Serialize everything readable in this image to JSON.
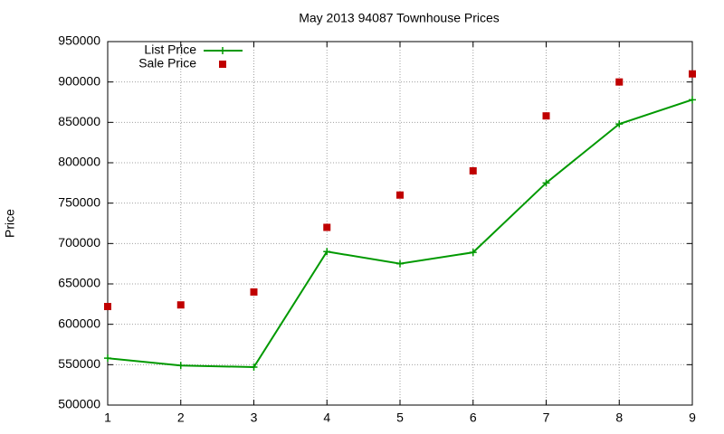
{
  "chart_data": {
    "type": "line",
    "title": "May 2013 94087 Townhouse Prices",
    "ylabel": "Price",
    "x": [
      1,
      2,
      3,
      4,
      5,
      6,
      7,
      8,
      9
    ],
    "series": [
      {
        "name": "List Price",
        "color": "#009900",
        "style": "linespoints",
        "values": [
          558000,
          549000,
          547000,
          690000,
          675000,
          689000,
          775000,
          848000,
          878000
        ]
      },
      {
        "name": "Sale Price",
        "color": "#c00000",
        "style": "points",
        "values": [
          622000,
          624000,
          640000,
          720000,
          760000,
          790000,
          858000,
          900000,
          910000
        ]
      }
    ],
    "xlim": [
      1,
      9
    ],
    "xticks": [
      1,
      2,
      3,
      4,
      5,
      6,
      7,
      8,
      9
    ],
    "ylim": [
      500000,
      950000
    ],
    "yticks": [
      500000,
      550000,
      600000,
      650000,
      700000,
      750000,
      800000,
      850000,
      900000,
      950000
    ],
    "grid": true,
    "legend": "top-left"
  }
}
